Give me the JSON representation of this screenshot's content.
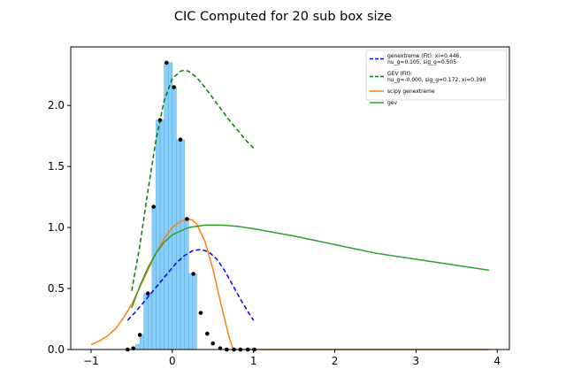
{
  "chart_data": {
    "type": "bar",
    "title": "CIC Computed for 20 sub box size",
    "xlabel": "",
    "ylabel": "",
    "xlim": [
      -1.25,
      4.15
    ],
    "ylim": [
      0,
      2.48
    ],
    "xticks": [
      -1,
      0,
      1,
      2,
      3,
      4
    ],
    "xtick_labels": [
      "−1",
      "0",
      "1",
      "2",
      "3",
      "4"
    ],
    "yticks": [
      0.0,
      0.5,
      1.0,
      1.5,
      2.0
    ],
    "ytick_labels": [
      "0.0",
      "0.5",
      "1.0",
      "1.5",
      "2.0"
    ],
    "grid": false,
    "legend_position": "top-right",
    "histogram": {
      "color": "#87cefa",
      "edge_color": "#5aa8d8",
      "bin_width": 0.05,
      "bins": [
        {
          "x0": -0.45,
          "height": 0.04
        },
        {
          "x0": -0.4,
          "height": 0.12
        },
        {
          "x0": -0.35,
          "height": 0.46
        },
        {
          "x0": -0.3,
          "height": 0.46
        },
        {
          "x0": -0.25,
          "height": 1.17
        },
        {
          "x0": -0.2,
          "height": 1.88
        },
        {
          "x0": -0.15,
          "height": 1.88
        },
        {
          "x0": -0.1,
          "height": 2.35
        },
        {
          "x0": -0.05,
          "height": 2.35
        },
        {
          "x0": 0.0,
          "height": 2.15
        },
        {
          "x0": 0.05,
          "height": 1.72
        },
        {
          "x0": 0.1,
          "height": 1.72
        },
        {
          "x0": 0.15,
          "height": 1.07
        },
        {
          "x0": 0.2,
          "height": 0.62
        },
        {
          "x0": 0.25,
          "height": 0.62
        }
      ]
    },
    "points": {
      "color": "#000000",
      "x": [
        -0.55,
        -0.48,
        -0.4,
        -0.3,
        -0.23,
        -0.15,
        -0.07,
        0.02,
        0.1,
        0.18,
        0.26,
        0.35,
        0.43,
        0.5,
        0.59,
        0.67,
        0.76,
        0.84,
        0.93,
        1.01
      ],
      "y": [
        0.0,
        0.01,
        0.12,
        0.46,
        1.17,
        1.88,
        2.35,
        2.15,
        1.72,
        1.07,
        0.62,
        0.3,
        0.13,
        0.05,
        0.01,
        0.0,
        0.0,
        0.0,
        0.0,
        0.0
      ]
    },
    "series": [
      {
        "name": "genextreme (Fit): xi=0.446, nu_g=0.105, sig_g=0.505",
        "name_lines": [
          "genextreme (Fit): xi=0.446,",
          "nu_g=0.105, sig_g=0.505"
        ],
        "color": "#0000ff",
        "style": "dashed",
        "x": [
          -0.55,
          -0.45,
          -0.35,
          -0.25,
          -0.15,
          -0.05,
          0.05,
          0.15,
          0.25,
          0.35,
          0.45,
          0.55,
          0.65,
          0.75,
          0.85,
          0.95,
          1.0
        ],
        "y": [
          0.24,
          0.31,
          0.39,
          0.47,
          0.55,
          0.63,
          0.71,
          0.77,
          0.81,
          0.82,
          0.8,
          0.74,
          0.64,
          0.52,
          0.4,
          0.29,
          0.24
        ]
      },
      {
        "name": "GEV (Fit): nu_g=-0.000, sig_g=0.172, xi=0.390",
        "name_lines": [
          "GEV (Fit):",
          "nu_g=-0.000, sig_g=0.172, xi=0.390"
        ],
        "color": "#007f00",
        "style": "dashed",
        "x": [
          -0.5,
          -0.4,
          -0.3,
          -0.2,
          -0.1,
          0.0,
          0.1,
          0.15,
          0.2,
          0.3,
          0.4,
          0.5,
          0.6,
          0.7,
          0.8,
          0.9,
          1.0
        ],
        "y": [
          0.48,
          0.85,
          1.3,
          1.72,
          2.04,
          2.22,
          2.28,
          2.29,
          2.28,
          2.23,
          2.15,
          2.06,
          1.97,
          1.88,
          1.8,
          1.72,
          1.65
        ]
      },
      {
        "name": "scipy genextreme",
        "color": "#ff7f0e",
        "style": "solid",
        "x": [
          -1.0,
          -0.9,
          -0.8,
          -0.7,
          -0.6,
          -0.5,
          -0.4,
          -0.3,
          -0.2,
          -0.1,
          0.0,
          0.1,
          0.2,
          0.25,
          0.3,
          0.4,
          0.5,
          0.6,
          0.7,
          0.75,
          0.8,
          1.0,
          2.0,
          3.0,
          3.9
        ],
        "y": [
          0.04,
          0.07,
          0.11,
          0.17,
          0.26,
          0.37,
          0.51,
          0.65,
          0.79,
          0.91,
          1.0,
          1.05,
          1.07,
          1.06,
          1.03,
          0.89,
          0.66,
          0.37,
          0.1,
          0.0,
          0.0,
          0.0,
          0.0,
          0.0,
          0.0
        ]
      },
      {
        "name": "gev",
        "color": "#2ca02c",
        "style": "solid",
        "x": [
          -0.5,
          -0.4,
          -0.3,
          -0.2,
          -0.1,
          0.0,
          0.2,
          0.4,
          0.6,
          0.8,
          1.0,
          1.5,
          2.0,
          2.5,
          3.0,
          3.5,
          3.9
        ],
        "y": [
          0.34,
          0.52,
          0.67,
          0.79,
          0.88,
          0.94,
          1.0,
          1.02,
          1.02,
          1.01,
          0.99,
          0.93,
          0.86,
          0.79,
          0.74,
          0.69,
          0.65
        ]
      }
    ]
  }
}
